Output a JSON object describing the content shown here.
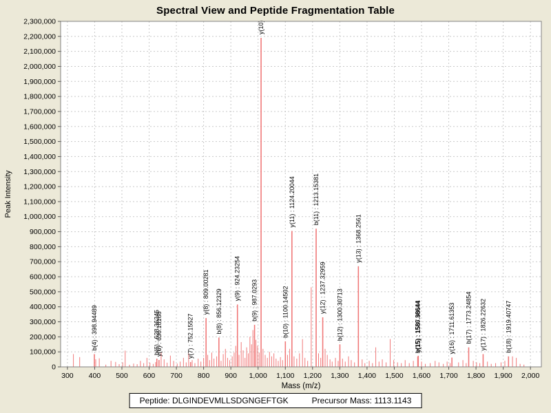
{
  "title": "Spectral View and Peptide Fragmentation Table",
  "footer": {
    "peptide_text": "Peptide: DLGINDEVMLLSDGNGEFTGK",
    "precursor_text": "Precursor Mass: 1113.1143"
  },
  "chart_data": {
    "type": "bar",
    "title": "Spectral View and Peptide Fragmentation Table",
    "xlabel": "Mass (m/z)",
    "ylabel": "Peak Intensity",
    "xlim": [
      275,
      2040
    ],
    "ylim": [
      0,
      2300000
    ],
    "grid": true,
    "legend": "none",
    "peak_color": "#f07878",
    "grid_color": "#c8c8c8",
    "plot_background": "#ffffff",
    "page_background": "#ece9d8",
    "border_color": "#808080",
    "x_ticks": [
      300,
      400,
      500,
      600,
      700,
      800,
      900,
      1000,
      1100,
      1200,
      1300,
      1400,
      1500,
      1600,
      1700,
      1800,
      1900,
      2000
    ],
    "y_ticks": [
      0,
      100000,
      200000,
      300000,
      400000,
      500000,
      600000,
      700000,
      800000,
      900000,
      1000000,
      1100000,
      1200000,
      1300000,
      1400000,
      1500000,
      1600000,
      1700000,
      1800000,
      1900000,
      2000000,
      2100000,
      2200000,
      2300000
    ],
    "labeled_peaks": [
      {
        "label": "b(4) : 398.94489",
        "mz": 398.94489,
        "intensity": 85000
      },
      {
        "label": "b(6) : 628.36245",
        "mz": 628.36245,
        "intensity": 55000
      },
      {
        "label": "y(6) : 636.18188",
        "mz": 636.18188,
        "intensity": 46000
      },
      {
        "label": "y(7) : 752.15527",
        "mz": 752.15527,
        "intensity": 32000
      },
      {
        "label": "y(8) : 809.00281",
        "mz": 809.00281,
        "intensity": 325000
      },
      {
        "label": "b(8) : 856.12329",
        "mz": 856.12329,
        "intensity": 195000
      },
      {
        "label": "y(9) : 924.23254",
        "mz": 924.23254,
        "intensity": 415000
      },
      {
        "label": "b(9) : 987.0293",
        "mz": 987.0293,
        "intensity": 280000
      },
      {
        "label": "y(10)",
        "mz": 1011.0,
        "intensity": 2190000
      },
      {
        "label": "b(10) : 1100.14502",
        "mz": 1100.14502,
        "intensity": 170000
      },
      {
        "label": "y(11) : 1124.20044",
        "mz": 1124.20044,
        "intensity": 905000
      },
      {
        "label": "b(11) : 1213.15381",
        "mz": 1213.15381,
        "intensity": 920000
      },
      {
        "label": "y(12) : 1237.32959",
        "mz": 1237.32959,
        "intensity": 330000
      },
      {
        "label": "b(12) : 1300.30713",
        "mz": 1300.30713,
        "intensity": 150000
      },
      {
        "label": "y(13) : 1368.2561",
        "mz": 1368.2561,
        "intensity": 670000
      },
      {
        "label": "b(15) : 1586.38644",
        "mz": 1586.38644,
        "intensity": 68000
      },
      {
        "label": "y(15) : 1587.98644",
        "mz": 1587.98644,
        "intensity": 74000
      },
      {
        "label": "y(16) : 1711.61353",
        "mz": 1711.61353,
        "intensity": 62000
      },
      {
        "label": "b(17) : 1773.24854",
        "mz": 1773.24854,
        "intensity": 130000
      },
      {
        "label": "y(17) : 1826.22632",
        "mz": 1826.22632,
        "intensity": 85000
      },
      {
        "label": "b(18) : 1919.40747",
        "mz": 1919.40747,
        "intensity": 70000
      }
    ],
    "background_peaks": [
      [
        322,
        85000
      ],
      [
        345,
        65000
      ],
      [
        404,
        50000
      ],
      [
        417,
        57000
      ],
      [
        441,
        15000
      ],
      [
        460,
        40000
      ],
      [
        477,
        33000
      ],
      [
        490,
        18000
      ],
      [
        503,
        30000
      ],
      [
        512,
        108000
      ],
      [
        528,
        14000
      ],
      [
        543,
        22000
      ],
      [
        556,
        18000
      ],
      [
        568,
        40000
      ],
      [
        580,
        25000
      ],
      [
        592,
        60000
      ],
      [
        603,
        28000
      ],
      [
        615,
        20000
      ],
      [
        624,
        32000
      ],
      [
        644,
        95000
      ],
      [
        655,
        50000
      ],
      [
        666,
        28000
      ],
      [
        678,
        75000
      ],
      [
        690,
        40000
      ],
      [
        703,
        22000
      ],
      [
        714,
        35000
      ],
      [
        726,
        60000
      ],
      [
        736,
        30000
      ],
      [
        745,
        90000
      ],
      [
        758,
        45000
      ],
      [
        768,
        25000
      ],
      [
        780,
        55000
      ],
      [
        790,
        35000
      ],
      [
        800,
        60000
      ],
      [
        815,
        80000
      ],
      [
        822,
        45000
      ],
      [
        830,
        95000
      ],
      [
        838,
        55000
      ],
      [
        848,
        70000
      ],
      [
        864,
        40000
      ],
      [
        872,
        85000
      ],
      [
        880,
        120000
      ],
      [
        888,
        60000
      ],
      [
        896,
        45000
      ],
      [
        905,
        70000
      ],
      [
        912,
        95000
      ],
      [
        918,
        140000
      ],
      [
        930,
        80000
      ],
      [
        938,
        165000
      ],
      [
        945,
        110000
      ],
      [
        952,
        60000
      ],
      [
        958,
        130000
      ],
      [
        964,
        90000
      ],
      [
        970,
        200000
      ],
      [
        976,
        150000
      ],
      [
        981,
        245000
      ],
      [
        992,
        180000
      ],
      [
        998,
        140000
      ],
      [
        1004,
        95000
      ],
      [
        1018,
        120000
      ],
      [
        1026,
        80000
      ],
      [
        1034,
        60000
      ],
      [
        1042,
        100000
      ],
      [
        1050,
        70000
      ],
      [
        1058,
        90000
      ],
      [
        1066,
        55000
      ],
      [
        1074,
        40000
      ],
      [
        1082,
        65000
      ],
      [
        1090,
        45000
      ],
      [
        1108,
        80000
      ],
      [
        1116,
        120000
      ],
      [
        1132,
        70000
      ],
      [
        1142,
        55000
      ],
      [
        1152,
        90000
      ],
      [
        1163,
        185000
      ],
      [
        1172,
        60000
      ],
      [
        1182,
        40000
      ],
      [
        1195,
        530000
      ],
      [
        1222,
        90000
      ],
      [
        1230,
        60000
      ],
      [
        1246,
        120000
      ],
      [
        1254,
        80000
      ],
      [
        1264,
        50000
      ],
      [
        1272,
        35000
      ],
      [
        1284,
        60000
      ],
      [
        1294,
        40000
      ],
      [
        1310,
        55000
      ],
      [
        1320,
        35000
      ],
      [
        1332,
        70000
      ],
      [
        1342,
        45000
      ],
      [
        1354,
        30000
      ],
      [
        1382,
        50000
      ],
      [
        1392,
        25000
      ],
      [
        1408,
        40000
      ],
      [
        1420,
        25000
      ],
      [
        1432,
        130000
      ],
      [
        1444,
        35000
      ],
      [
        1456,
        50000
      ],
      [
        1470,
        30000
      ],
      [
        1485,
        185000
      ],
      [
        1498,
        45000
      ],
      [
        1512,
        30000
      ],
      [
        1526,
        25000
      ],
      [
        1540,
        45000
      ],
      [
        1555,
        25000
      ],
      [
        1570,
        40000
      ],
      [
        1600,
        35000
      ],
      [
        1614,
        20000
      ],
      [
        1632,
        25000
      ],
      [
        1650,
        40000
      ],
      [
        1664,
        30000
      ],
      [
        1680,
        20000
      ],
      [
        1694,
        35000
      ],
      [
        1705,
        25000
      ],
      [
        1736,
        30000
      ],
      [
        1752,
        45000
      ],
      [
        1764,
        25000
      ],
      [
        1790,
        40000
      ],
      [
        1802,
        30000
      ],
      [
        1814,
        25000
      ],
      [
        1842,
        35000
      ],
      [
        1856,
        20000
      ],
      [
        1872,
        25000
      ],
      [
        1892,
        30000
      ],
      [
        1906,
        40000
      ],
      [
        1934,
        70000
      ],
      [
        1948,
        60000
      ],
      [
        1962,
        20000
      ],
      [
        1976,
        15000
      ]
    ]
  }
}
